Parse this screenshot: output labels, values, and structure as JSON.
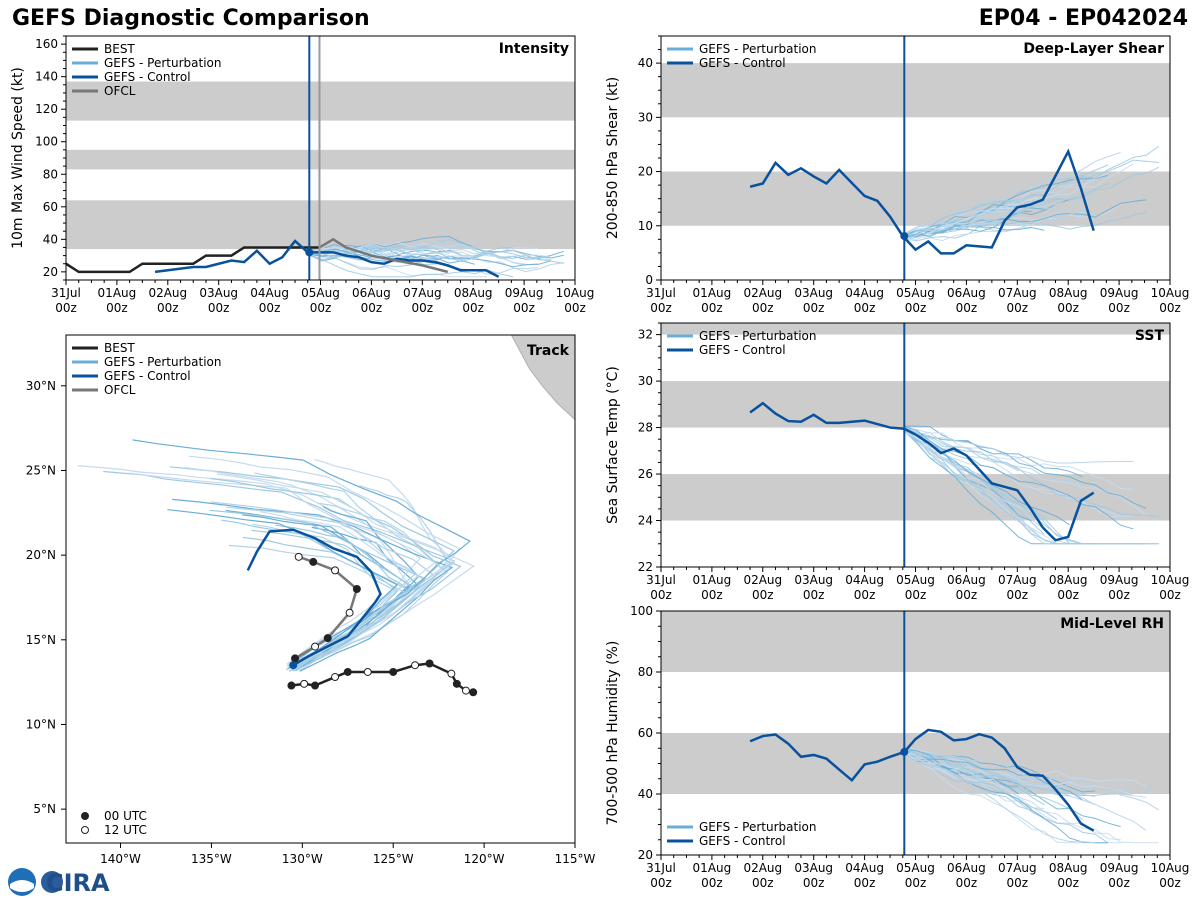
{
  "header": {
    "title": "GEFS Diagnostic Comparison",
    "storm_id": "EP04 - EP042024"
  },
  "logo": {
    "text": "CIRA"
  },
  "time_axis": {
    "ticks": [
      "31Jul 00z",
      "01Aug 00z",
      "02Aug 00z",
      "03Aug 00z",
      "04Aug 00z",
      "05Aug 00z",
      "06Aug 00z",
      "07Aug 00z",
      "08Aug 00z",
      "09Aug 00z",
      "10Aug 00z"
    ],
    "now": 4.78,
    "ofcl_time": 4.98
  },
  "colors": {
    "best": "#222222",
    "perturbation": "#6aaed6",
    "control": "#08519c",
    "ofcl": "#777777",
    "band": "#cccccc"
  },
  "chart_data": [
    {
      "id": "intensity",
      "type": "line",
      "title": "Intensity",
      "ylabel": "10m Max Wind Speed (kt)",
      "xlim": [
        0,
        10
      ],
      "ylim": [
        15,
        165
      ],
      "yticks": [
        20,
        40,
        60,
        80,
        100,
        120,
        140,
        160
      ],
      "bands": [
        [
          34,
          64
        ],
        [
          83,
          95
        ],
        [
          113,
          137
        ]
      ],
      "legend": [
        "BEST",
        "GEFS - Perturbation",
        "GEFS - Control",
        "OFCL"
      ],
      "series": [
        {
          "name": "BEST",
          "points": [
            [
              0,
              25
            ],
            [
              0.25,
              20
            ],
            [
              0.5,
              20
            ],
            [
              0.75,
              20
            ],
            [
              1,
              20
            ],
            [
              1.25,
              20
            ],
            [
              1.5,
              25
            ],
            [
              1.75,
              25
            ],
            [
              2,
              25
            ],
            [
              2.25,
              25
            ],
            [
              2.5,
              25
            ],
            [
              2.75,
              30
            ],
            [
              3,
              30
            ],
            [
              3.25,
              30
            ],
            [
              3.5,
              35
            ],
            [
              3.75,
              35
            ],
            [
              4,
              35
            ],
            [
              4.25,
              35
            ],
            [
              4.5,
              35
            ],
            [
              4.75,
              35
            ],
            [
              5,
              35
            ]
          ]
        },
        {
          "name": "GEFS - Control",
          "points": [
            [
              1.75,
              20
            ],
            [
              2,
              21
            ],
            [
              2.25,
              22
            ],
            [
              2.5,
              23
            ],
            [
              2.75,
              23
            ],
            [
              3,
              25
            ],
            [
              3.25,
              27
            ],
            [
              3.5,
              26
            ],
            [
              3.75,
              33
            ],
            [
              4,
              25
            ],
            [
              4.25,
              29
            ],
            [
              4.5,
              39
            ],
            [
              4.75,
              32
            ],
            [
              5,
              32
            ],
            [
              5.25,
              32
            ],
            [
              5.5,
              30
            ],
            [
              5.75,
              29
            ],
            [
              6,
              26
            ],
            [
              6.25,
              25
            ],
            [
              6.5,
              28
            ],
            [
              6.75,
              27
            ],
            [
              7,
              27
            ],
            [
              7.25,
              26
            ],
            [
              7.5,
              24
            ],
            [
              7.75,
              21
            ],
            [
              8,
              21
            ],
            [
              8.25,
              21
            ],
            [
              8.5,
              17
            ]
          ]
        },
        {
          "name": "OFCL",
          "points": [
            [
              4.98,
              35
            ],
            [
              5.25,
              40
            ],
            [
              5.5,
              35
            ],
            [
              6,
              30
            ],
            [
              6.5,
              27
            ],
            [
              7,
              24
            ],
            [
              7.5,
              20
            ]
          ]
        }
      ],
      "markers": [
        {
          "x": 4.78,
          "y": 32
        }
      ],
      "perturbation_spread": {
        "start": 4.78,
        "y0": 32,
        "slope": -1.6,
        "stop": 10,
        "floor": 17
      }
    },
    {
      "id": "shear",
      "type": "line",
      "title": "Deep-Layer Shear",
      "ylabel": "200-850 hPa Shear (kt)",
      "xlim": [
        0,
        10
      ],
      "ylim": [
        0,
        45
      ],
      "yticks": [
        0,
        10,
        20,
        30,
        40
      ],
      "bands": [
        [
          10,
          20
        ],
        [
          30,
          40
        ]
      ],
      "legend": [
        "GEFS - Perturbation",
        "GEFS - Control"
      ],
      "series": [
        {
          "name": "GEFS - Control",
          "points": [
            [
              1.75,
              17.2
            ],
            [
              2,
              17.8
            ],
            [
              2.25,
              21.6
            ],
            [
              2.5,
              19.4
            ],
            [
              2.75,
              20.6
            ],
            [
              3,
              19.1
            ],
            [
              3.25,
              17.8
            ],
            [
              3.5,
              20.3
            ],
            [
              3.75,
              17.9
            ],
            [
              4,
              15.5
            ],
            [
              4.25,
              14.6
            ],
            [
              4.5,
              11.7
            ],
            [
              4.75,
              8.1
            ],
            [
              5,
              5.6
            ],
            [
              5.25,
              7.1
            ],
            [
              5.5,
              4.9
            ],
            [
              5.75,
              4.9
            ],
            [
              6,
              6.4
            ],
            [
              6.25,
              6.2
            ],
            [
              6.5,
              6.0
            ],
            [
              6.75,
              10.9
            ],
            [
              7,
              13.4
            ],
            [
              7.25,
              13.9
            ],
            [
              7.5,
              14.8
            ],
            [
              7.75,
              19.2
            ],
            [
              8,
              23.7
            ],
            [
              8.25,
              16.9
            ],
            [
              8.5,
              9.1
            ]
          ]
        }
      ],
      "markers": [
        {
          "x": 4.78,
          "y": 8.1
        }
      ],
      "perturbation_spread": {
        "start": 4.78,
        "y0": 8,
        "slope": 2.4,
        "stop": 10,
        "floor": 1
      }
    },
    {
      "id": "sst",
      "type": "line",
      "title": "SST",
      "ylabel": "Sea Surface Temp (°C)",
      "xlim": [
        0,
        10
      ],
      "ylim": [
        22,
        32.5
      ],
      "yticks": [
        22,
        24,
        26,
        28,
        30,
        32
      ],
      "bands": [
        [
          24,
          26
        ],
        [
          28,
          30
        ],
        [
          32,
          33
        ]
      ],
      "legend": [
        "GEFS - Perturbation",
        "GEFS - Control"
      ],
      "series": [
        {
          "name": "GEFS - Control",
          "points": [
            [
              1.75,
              28.65
            ],
            [
              2,
              29.05
            ],
            [
              2.25,
              28.6
            ],
            [
              2.5,
              28.28
            ],
            [
              2.75,
              28.25
            ],
            [
              3,
              28.55
            ],
            [
              3.25,
              28.2
            ],
            [
              3.5,
              28.2
            ],
            [
              4,
              28.3
            ],
            [
              4.5,
              28.0
            ],
            [
              4.78,
              27.95
            ],
            [
              5,
              27.7
            ],
            [
              5.25,
              27.35
            ],
            [
              5.5,
              26.9
            ],
            [
              5.75,
              27.1
            ],
            [
              6,
              26.8
            ],
            [
              6.25,
              26.2
            ],
            [
              6.5,
              25.6
            ],
            [
              6.75,
              25.45
            ],
            [
              7,
              25.3
            ],
            [
              7.25,
              24.55
            ],
            [
              7.5,
              23.7
            ],
            [
              7.75,
              23.15
            ],
            [
              8,
              23.3
            ],
            [
              8.25,
              24.85
            ],
            [
              8.5,
              25.2
            ]
          ]
        }
      ],
      "markers": [],
      "perturbation_spread": {
        "start": 4.78,
        "y0": 27.95,
        "slope": -1.2,
        "stop": 10,
        "floor": 23
      }
    },
    {
      "id": "rh",
      "type": "line",
      "title": "Mid-Level RH",
      "ylabel": "700-500 hPa Humidity (%)",
      "xlim": [
        0,
        10
      ],
      "ylim": [
        20,
        100
      ],
      "yticks": [
        20,
        40,
        60,
        80,
        100
      ],
      "bands": [
        [
          40,
          60
        ],
        [
          80,
          100
        ]
      ],
      "legend": [
        "GEFS - Perturbation",
        "GEFS - Control"
      ],
      "series": [
        {
          "name": "GEFS - Control",
          "points": [
            [
              1.75,
              57.3
            ],
            [
              2,
              59.0
            ],
            [
              2.25,
              59.5
            ],
            [
              2.5,
              56.5
            ],
            [
              2.75,
              52.2
            ],
            [
              3,
              52.8
            ],
            [
              3.25,
              51.6
            ],
            [
              3.5,
              48.0
            ],
            [
              3.75,
              44.5
            ],
            [
              4,
              49.7
            ],
            [
              4.25,
              50.6
            ],
            [
              4.5,
              52.2
            ],
            [
              4.78,
              53.8
            ],
            [
              5,
              58.0
            ],
            [
              5.25,
              61.0
            ],
            [
              5.5,
              60.4
            ],
            [
              5.75,
              57.6
            ],
            [
              6,
              58.0
            ],
            [
              6.25,
              59.6
            ],
            [
              6.5,
              58.5
            ],
            [
              6.75,
              55.0
            ],
            [
              7,
              48.8
            ],
            [
              7.25,
              46.3
            ],
            [
              7.5,
              46.0
            ],
            [
              7.75,
              41.5
            ],
            [
              8,
              36.5
            ],
            [
              8.25,
              30.3
            ],
            [
              8.5,
              28.0
            ]
          ]
        }
      ],
      "markers": [
        {
          "x": 4.78,
          "y": 53.8
        }
      ],
      "perturbation_spread": {
        "start": 4.78,
        "y0": 54,
        "slope": -5.5,
        "stop": 10,
        "floor": 24
      }
    },
    {
      "id": "track",
      "type": "scatter",
      "title": "Track",
      "xlim": [
        -143,
        -115
      ],
      "ylim": [
        3,
        33
      ],
      "xticks": [
        -140,
        -135,
        -130,
        -125,
        -120,
        -115
      ],
      "xticklabels": [
        "140°W",
        "135°W",
        "130°W",
        "125°W",
        "120°W",
        "115°W"
      ],
      "yticks": [
        5,
        10,
        15,
        20,
        25,
        30
      ],
      "yticklabels": [
        "5°N",
        "10°N",
        "15°N",
        "20°N",
        "25°N",
        "30°N"
      ],
      "legend": [
        "BEST",
        "GEFS - Perturbation",
        "GEFS - Control",
        "OFCL"
      ],
      "marker_legend": [
        "00 UTC",
        "12 UTC"
      ],
      "best": [
        [
          -120.6,
          11.9
        ],
        [
          -121,
          12.0
        ],
        [
          -121.5,
          12.4
        ],
        [
          -121.8,
          13.0
        ],
        [
          -123,
          13.6
        ],
        [
          -123.8,
          13.5
        ],
        [
          -125,
          13.1
        ],
        [
          -126.4,
          13.1
        ],
        [
          -127.5,
          13.1
        ],
        [
          -128.2,
          12.8
        ],
        [
          -129.3,
          12.3
        ],
        [
          -129.9,
          12.4
        ],
        [
          -130.6,
          12.3
        ]
      ],
      "control": [
        [
          -130.5,
          13.5
        ],
        [
          -129.7,
          14.0
        ],
        [
          -128.8,
          14.5
        ],
        [
          -127.5,
          15.2
        ],
        [
          -126.6,
          16.4
        ],
        [
          -126,
          17.2
        ],
        [
          -125.7,
          17.7
        ],
        [
          -126.2,
          19.0
        ],
        [
          -127.0,
          19.9
        ],
        [
          -128.3,
          20.4
        ],
        [
          -129.3,
          21.0
        ],
        [
          -130.5,
          21.5
        ],
        [
          -131.8,
          21.4
        ],
        [
          -132.5,
          20.2
        ],
        [
          -133,
          19.1
        ]
      ],
      "ofcl": [
        [
          -130.4,
          13.9
        ],
        [
          -129.3,
          14.6
        ],
        [
          -128.6,
          15.1
        ],
        [
          -127.4,
          16.6
        ],
        [
          -127.0,
          18.0
        ],
        [
          -128.2,
          19.1
        ],
        [
          -129.4,
          19.6
        ],
        [
          -130.2,
          19.9
        ]
      ],
      "land": [
        [
          -118.5,
          33
        ],
        [
          -117.5,
          31
        ],
        [
          -116.8,
          30
        ],
        [
          -116,
          29
        ],
        [
          -115.2,
          28.2
        ],
        [
          -115,
          28
        ],
        [
          -115,
          33
        ]
      ]
    }
  ]
}
